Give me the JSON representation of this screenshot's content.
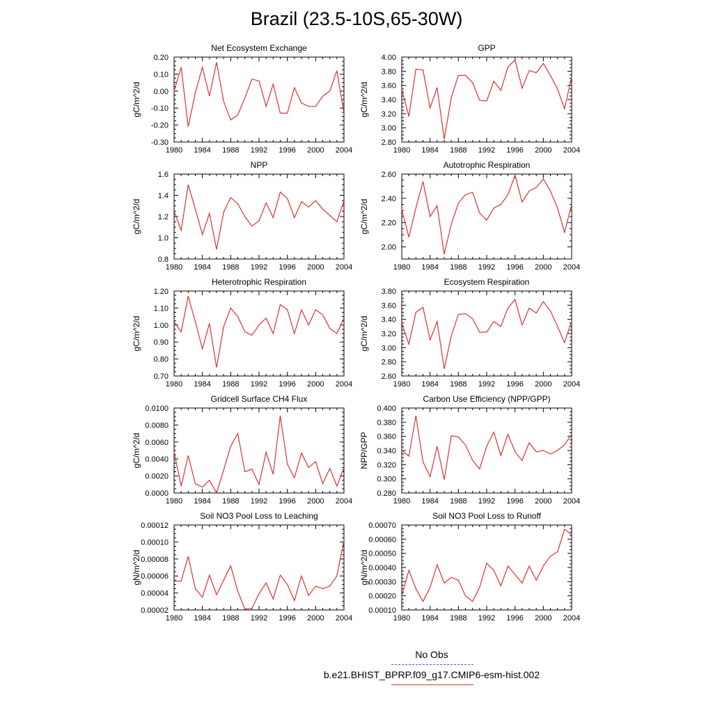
{
  "title": "Brazil (23.5-10S,65-30W)",
  "legend": {
    "obs_label": "No Obs",
    "obs_color": "#5555dd",
    "model_label": "b.e21.BHIST_BPRP.f09_g17.CMIP6-esm-hist.002",
    "model_color": "#e03030"
  },
  "chart_data": [
    {
      "type": "line",
      "title": "Net Ecosystem Exchange",
      "ylabel": "gC/m^2/d",
      "xlim": [
        1980,
        2004
      ],
      "xticks": [
        "1980",
        "1984",
        "1988",
        "1992",
        "1996",
        "2000",
        "2004"
      ],
      "ylim": [
        -0.3,
        0.2
      ],
      "yticks": [
        "-0.30",
        "-0.20",
        "-0.10",
        "0.00",
        "0.10",
        "0.20"
      ],
      "x": [
        1980,
        1981,
        1982,
        1983,
        1984,
        1985,
        1986,
        1987,
        1988,
        1989,
        1990,
        1991,
        1992,
        1993,
        1994,
        1995,
        1996,
        1997,
        1998,
        1999,
        2000,
        2001,
        2002,
        2003,
        2004
      ],
      "series": [
        {
          "values": [
            0.0,
            0.14,
            -0.21,
            -0.01,
            0.14,
            -0.03,
            0.17,
            -0.06,
            -0.17,
            -0.14,
            -0.04,
            0.07,
            0.06,
            -0.09,
            0.04,
            -0.13,
            -0.13,
            0.02,
            -0.07,
            -0.09,
            -0.09,
            -0.03,
            0.0,
            0.12,
            -0.13
          ]
        }
      ]
    },
    {
      "type": "line",
      "title": "GPP",
      "ylabel": "gC/m^2/d",
      "xlim": [
        1980,
        2004
      ],
      "xticks": [
        "1980",
        "1984",
        "1988",
        "1992",
        "1996",
        "2000",
        "2004"
      ],
      "ylim": [
        2.8,
        4.0
      ],
      "yticks": [
        "2.80",
        "3.00",
        "3.20",
        "3.40",
        "3.60",
        "3.80",
        "4.00"
      ],
      "x": [
        1980,
        1981,
        1982,
        1983,
        1984,
        1985,
        1986,
        1987,
        1988,
        1989,
        1990,
        1991,
        1992,
        1993,
        1994,
        1995,
        1996,
        1997,
        1998,
        1999,
        2000,
        2001,
        2002,
        2003,
        2004
      ],
      "series": [
        {
          "values": [
            3.55,
            3.16,
            3.83,
            3.82,
            3.28,
            3.57,
            2.84,
            3.43,
            3.74,
            3.74,
            3.64,
            3.39,
            3.38,
            3.66,
            3.53,
            3.86,
            3.96,
            3.56,
            3.81,
            3.78,
            3.91,
            3.74,
            3.55,
            3.27,
            3.72
          ]
        }
      ]
    },
    {
      "type": "line",
      "title": "NPP",
      "ylabel": "gC/m^2/d",
      "xlim": [
        1980,
        2004
      ],
      "xticks": [
        "1980",
        "1984",
        "1988",
        "1992",
        "1996",
        "2000",
        "2004"
      ],
      "ylim": [
        0.8,
        1.6
      ],
      "yticks": [
        "0.8",
        "1.0",
        "1.2",
        "1.4",
        "1.6"
      ],
      "x": [
        1980,
        1981,
        1982,
        1983,
        1984,
        1985,
        1986,
        1987,
        1988,
        1989,
        1990,
        1991,
        1992,
        1993,
        1994,
        1995,
        1996,
        1997,
        1998,
        1999,
        2000,
        2001,
        2002,
        2003,
        2004
      ],
      "series": [
        {
          "values": [
            1.25,
            1.07,
            1.5,
            1.27,
            1.03,
            1.23,
            0.89,
            1.24,
            1.38,
            1.32,
            1.2,
            1.11,
            1.16,
            1.33,
            1.19,
            1.43,
            1.37,
            1.19,
            1.34,
            1.29,
            1.35,
            1.27,
            1.21,
            1.15,
            1.35
          ]
        }
      ]
    },
    {
      "type": "line",
      "title": "Autotrophic Respiration",
      "ylabel": "gC/m^2/d",
      "xlim": [
        1980,
        2004
      ],
      "xticks": [
        "1980",
        "1984",
        "1988",
        "1992",
        "1996",
        "2000",
        "2004"
      ],
      "ylim": [
        1.9,
        2.6
      ],
      "yticks": [
        "2.00",
        "2.20",
        "2.40",
        "2.60"
      ],
      "x": [
        1980,
        1981,
        1982,
        1983,
        1984,
        1985,
        1986,
        1987,
        1988,
        1989,
        1990,
        1991,
        1992,
        1993,
        1994,
        1995,
        1996,
        1997,
        1998,
        1999,
        2000,
        2001,
        2002,
        2003,
        2004
      ],
      "series": [
        {
          "values": [
            2.31,
            2.08,
            2.32,
            2.54,
            2.25,
            2.34,
            1.94,
            2.19,
            2.36,
            2.43,
            2.45,
            2.28,
            2.22,
            2.32,
            2.35,
            2.43,
            2.59,
            2.37,
            2.46,
            2.49,
            2.56,
            2.46,
            2.32,
            2.12,
            2.35
          ]
        }
      ]
    },
    {
      "type": "line",
      "title": "Heterotrophic Respiration",
      "ylabel": "gC/m^2/d",
      "xlim": [
        1980,
        2004
      ],
      "xticks": [
        "1980",
        "1984",
        "1988",
        "1992",
        "1996",
        "2000",
        "2004"
      ],
      "ylim": [
        0.7,
        1.2
      ],
      "yticks": [
        "0.70",
        "0.80",
        "0.90",
        "1.00",
        "1.10",
        "1.20"
      ],
      "x": [
        1980,
        1981,
        1982,
        1983,
        1984,
        1985,
        1986,
        1987,
        1988,
        1989,
        1990,
        1991,
        1992,
        1993,
        1994,
        1995,
        1996,
        1997,
        1998,
        1999,
        2000,
        2001,
        2002,
        2003,
        2004
      ],
      "series": [
        {
          "values": [
            1.02,
            0.96,
            1.17,
            1.02,
            0.86,
            1.01,
            0.75,
            0.99,
            1.1,
            1.05,
            0.96,
            0.94,
            1.0,
            1.04,
            0.95,
            1.12,
            1.09,
            0.95,
            1.09,
            1.0,
            1.09,
            1.06,
            0.98,
            0.95,
            1.04
          ]
        }
      ]
    },
    {
      "type": "line",
      "title": "Ecosystem Respiration",
      "ylabel": "gC/m^2/d",
      "xlim": [
        1980,
        2004
      ],
      "xticks": [
        "1980",
        "1984",
        "1988",
        "1992",
        "1996",
        "2000",
        "2004"
      ],
      "ylim": [
        2.6,
        3.8
      ],
      "yticks": [
        "2.60",
        "2.80",
        "3.00",
        "3.20",
        "3.40",
        "3.60",
        "3.80"
      ],
      "x": [
        1980,
        1981,
        1982,
        1983,
        1984,
        1985,
        1986,
        1987,
        1988,
        1989,
        1990,
        1991,
        1992,
        1993,
        1994,
        1995,
        1996,
        1997,
        1998,
        1999,
        2000,
        2001,
        2002,
        2003,
        2004
      ],
      "series": [
        {
          "values": [
            3.35,
            3.05,
            3.5,
            3.57,
            3.11,
            3.37,
            2.7,
            3.17,
            3.47,
            3.48,
            3.41,
            3.22,
            3.22,
            3.37,
            3.3,
            3.56,
            3.68,
            3.32,
            3.56,
            3.49,
            3.65,
            3.52,
            3.3,
            3.07,
            3.38
          ]
        }
      ]
    },
    {
      "type": "line",
      "title": "Gridcell Surface CH4 Flux",
      "ylabel": "gC/m^2/d",
      "xlim": [
        1980,
        2004
      ],
      "xticks": [
        "1980",
        "1984",
        "1988",
        "1992",
        "1996",
        "2000",
        "2004"
      ],
      "ylim": [
        0.0,
        0.01
      ],
      "yticks": [
        "0.0000",
        "0.0020",
        "0.0040",
        "0.0060",
        "0.0080",
        "0.0100"
      ],
      "x": [
        1980,
        1981,
        1982,
        1983,
        1984,
        1985,
        1986,
        1987,
        1988,
        1989,
        1990,
        1991,
        1992,
        1993,
        1994,
        1995,
        1996,
        1997,
        1998,
        1999,
        2000,
        2001,
        2002,
        2003,
        2004
      ],
      "series": [
        {
          "values": [
            0.0048,
            0.0008,
            0.0044,
            0.0011,
            0.0007,
            0.0015,
            0.0,
            0.0027,
            0.0055,
            0.007,
            0.0025,
            0.0028,
            0.001,
            0.0048,
            0.0022,
            0.0091,
            0.0034,
            0.0018,
            0.0047,
            0.003,
            0.0037,
            0.0011,
            0.0029,
            0.0008,
            0.003
          ]
        }
      ]
    },
    {
      "type": "line",
      "title": "Carbon Use Efficiency (NPP/GPP)",
      "ylabel": "NPP/GPP",
      "xlim": [
        1980,
        2004
      ],
      "xticks": [
        "1980",
        "1984",
        "1988",
        "1992",
        "1996",
        "2000",
        "2004"
      ],
      "ylim": [
        0.28,
        0.4
      ],
      "yticks": [
        "0.280",
        "0.300",
        "0.320",
        "0.340",
        "0.360",
        "0.380",
        "0.400"
      ],
      "x": [
        1980,
        1981,
        1982,
        1983,
        1984,
        1985,
        1986,
        1987,
        1988,
        1989,
        1990,
        1991,
        1992,
        1993,
        1994,
        1995,
        1996,
        1997,
        1998,
        1999,
        2000,
        2001,
        2002,
        2003,
        2004
      ],
      "series": [
        {
          "values": [
            0.34,
            0.332,
            0.389,
            0.324,
            0.303,
            0.346,
            0.299,
            0.361,
            0.359,
            0.348,
            0.326,
            0.314,
            0.346,
            0.366,
            0.333,
            0.363,
            0.338,
            0.326,
            0.351,
            0.338,
            0.34,
            0.335,
            0.34,
            0.348,
            0.363
          ]
        }
      ]
    },
    {
      "type": "line",
      "title": "Soil NO3 Pool Loss to Leaching",
      "ylabel": "gN/m^2/d",
      "xlim": [
        1980,
        2004
      ],
      "xticks": [
        "1980",
        "1984",
        "1988",
        "1992",
        "1996",
        "2000",
        "2004"
      ],
      "ylim": [
        2e-05,
        0.00012
      ],
      "yticks": [
        "0.00002",
        "0.00004",
        "0.00006",
        "0.00008",
        "0.00010",
        "0.00012"
      ],
      "x": [
        1980,
        1981,
        1982,
        1983,
        1984,
        1985,
        1986,
        1987,
        1988,
        1989,
        1990,
        1991,
        1992,
        1993,
        1994,
        1995,
        1996,
        1997,
        1998,
        1999,
        2000,
        2001,
        2002,
        2003,
        2004
      ],
      "series": [
        {
          "values": [
            5.4e-05,
            5.4e-05,
            8.3e-05,
            4.5e-05,
            3.5e-05,
            6.1e-05,
            3.8e-05,
            5.5e-05,
            7.2e-05,
            4.2e-05,
            2.1e-05,
            2.2e-05,
            3.9e-05,
            5.2e-05,
            3.3e-05,
            6.1e-05,
            5e-05,
            3.1e-05,
            6e-05,
            3.7e-05,
            4.8e-05,
            4.5e-05,
            4.8e-05,
            6e-05,
            0.000102
          ]
        }
      ]
    },
    {
      "type": "line",
      "title": "Soil NO3 Pool Loss to Runoff",
      "ylabel": "gN/m^2/d",
      "xlim": [
        1980,
        2004
      ],
      "xticks": [
        "1980",
        "1984",
        "1988",
        "1992",
        "1996",
        "2000",
        "2004"
      ],
      "ylim": [
        0.0001,
        0.0007
      ],
      "yticks": [
        "0.00010",
        "0.00020",
        "0.00030",
        "0.00040",
        "0.00050",
        "0.00060",
        "0.00070"
      ],
      "x": [
        1980,
        1981,
        1982,
        1983,
        1984,
        1985,
        1986,
        1987,
        1988,
        1989,
        1990,
        1991,
        1992,
        1993,
        1994,
        1995,
        1996,
        1997,
        1998,
        1999,
        2000,
        2001,
        2002,
        2003,
        2004
      ],
      "series": [
        {
          "values": [
            0.0002,
            0.00038,
            0.00025,
            0.00016,
            0.00026,
            0.00042,
            0.00029,
            0.00033,
            0.00031,
            0.0002,
            0.00016,
            0.00026,
            0.00043,
            0.00038,
            0.00027,
            0.00041,
            0.00035,
            0.00029,
            0.00041,
            0.00031,
            0.00041,
            0.00048,
            0.00051,
            0.00067,
            0.00063
          ]
        }
      ]
    }
  ]
}
